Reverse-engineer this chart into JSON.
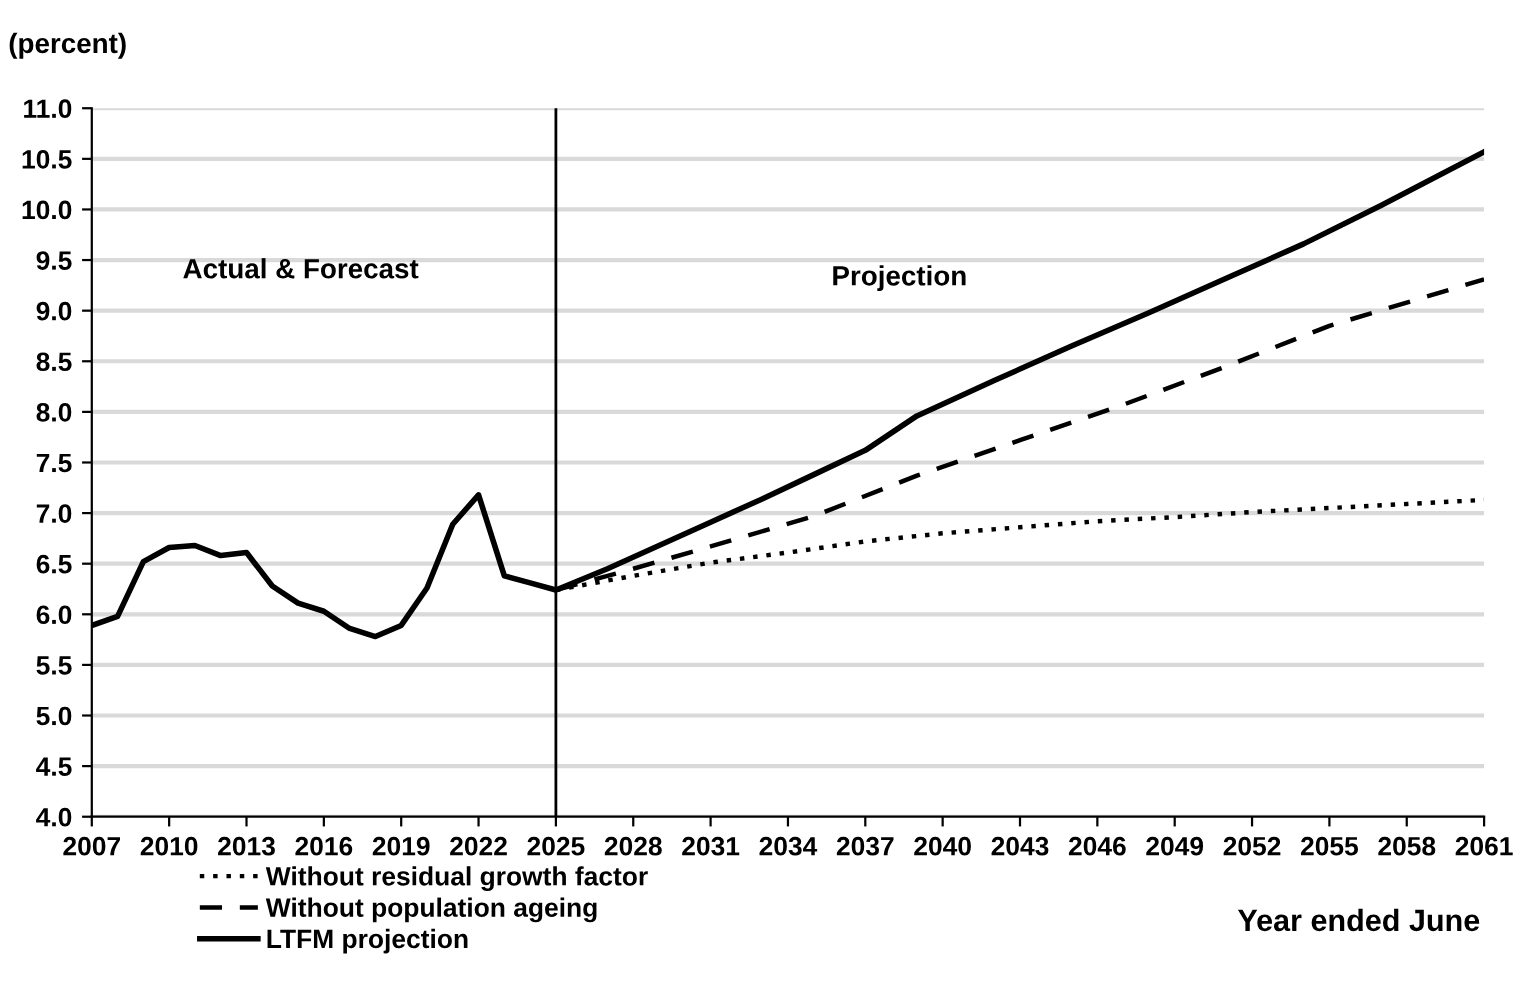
{
  "chart_data": {
    "type": "line",
    "ylabel": "(percent)",
    "xlabel": "Year ended June",
    "annotations": [
      "Actual & Forecast",
      "Projection"
    ],
    "series": [
      {
        "name": "Without residual growth factor",
        "color": "#000000",
        "line_style": "dotted",
        "x": [
          2025,
          2028,
          2031,
          2034,
          2037,
          2040,
          2043,
          2046,
          2049,
          2052,
          2055,
          2058,
          2061
        ],
        "values": [
          6.24,
          6.38,
          6.51,
          6.61,
          6.72,
          6.8,
          6.86,
          6.92,
          6.96,
          7.01,
          7.05,
          7.09,
          7.13
        ]
      },
      {
        "name": "Without population ageing",
        "color": "#000000",
        "line_style": "dashed",
        "x": [
          2025,
          2028,
          2031,
          2035,
          2039,
          2043,
          2047,
          2051,
          2055,
          2061
        ],
        "values": [
          6.24,
          6.45,
          6.67,
          6.97,
          7.37,
          7.72,
          8.07,
          8.45,
          8.85,
          9.31
        ]
      },
      {
        "name": "LTFM projection",
        "color": "#000000",
        "line_style": "solid",
        "x": [
          2007,
          2008,
          2009,
          2010,
          2011,
          2012,
          2013,
          2014,
          2015,
          2016,
          2017,
          2018,
          2019,
          2020,
          2021,
          2022,
          2023,
          2024,
          2025,
          2027,
          2029,
          2031,
          2033,
          2035,
          2037,
          2039,
          2042,
          2045,
          2048,
          2051,
          2054,
          2057,
          2061
        ],
        "values": [
          5.89,
          5.98,
          6.52,
          6.66,
          6.68,
          6.58,
          6.61,
          6.28,
          6.11,
          6.03,
          5.86,
          5.78,
          5.89,
          6.26,
          6.89,
          7.18,
          6.38,
          6.31,
          6.24,
          6.45,
          6.68,
          6.91,
          7.14,
          7.38,
          7.62,
          7.96,
          8.31,
          8.65,
          8.98,
          9.32,
          9.66,
          10.04,
          10.57
        ]
      }
    ],
    "xlim": [
      2007,
      2061
    ],
    "xticks": [
      2007,
      2010,
      2013,
      2016,
      2019,
      2022,
      2025,
      2028,
      2031,
      2034,
      2037,
      2040,
      2043,
      2046,
      2049,
      2052,
      2055,
      2058,
      2061
    ],
    "ylim": [
      4,
      11
    ],
    "yticks": [
      {
        "value": 4,
        "label": "4.0"
      },
      {
        "value": 4.5,
        "label": "4.5"
      },
      {
        "value": 5,
        "label": "5.0"
      },
      {
        "value": 5.5,
        "label": "5.5"
      },
      {
        "value": 6,
        "label": "6.0"
      },
      {
        "value": 6.5,
        "label": "6.5"
      },
      {
        "value": 7,
        "label": "7.0"
      },
      {
        "value": 7.5,
        "label": "7.5"
      },
      {
        "value": 8,
        "label": "8.0"
      },
      {
        "value": 8.5,
        "label": "8.5"
      },
      {
        "value": 9,
        "label": "9.0"
      },
      {
        "value": 9.5,
        "label": "9.5"
      },
      {
        "value": 10,
        "label": "10.0"
      },
      {
        "value": 10.5,
        "label": "10.5"
      },
      {
        "value": 11,
        "label": "11.0"
      }
    ],
    "ref_lines": [
      {
        "axis": "x",
        "value": 2025,
        "color": "#000000"
      }
    ],
    "grid": "y",
    "legend": "bottom left"
  }
}
